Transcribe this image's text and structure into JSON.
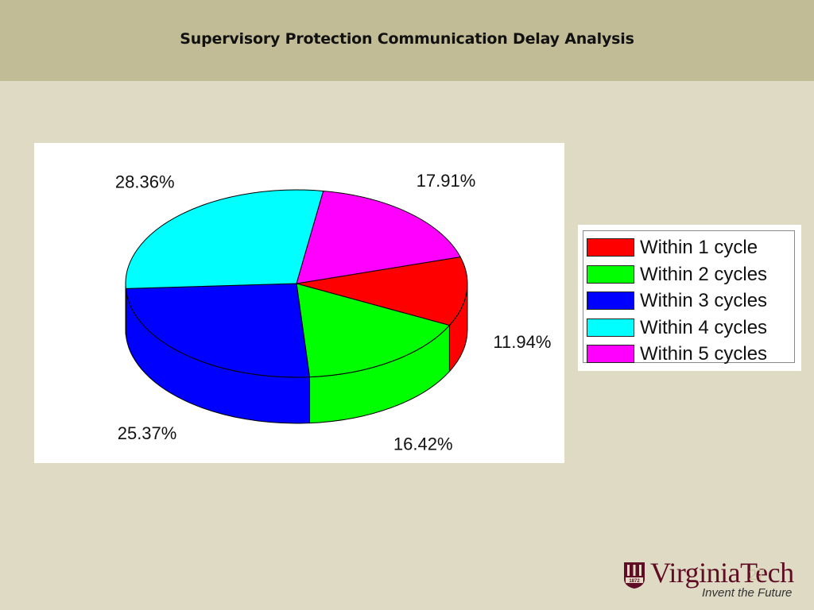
{
  "slide": {
    "title": "Supervisory Protection Communication Delay Analysis",
    "page_number": "27"
  },
  "logo": {
    "wordmark": "VirginiaTech",
    "tagline": "Invent the Future",
    "shield_text": "1872",
    "brand_color": "#5e0d24"
  },
  "chart_data": {
    "type": "pie",
    "style": "3d",
    "title": "",
    "categories": [
      "Within 1 cycle",
      "Within 2 cycles",
      "Within 3 cycles",
      "Within 4 cycles",
      "Within 5 cycles"
    ],
    "values": [
      11.94,
      16.42,
      25.37,
      28.36,
      17.91
    ],
    "labels": [
      "11.94%",
      "16.42%",
      "25.37%",
      "28.36%",
      "17.91%"
    ],
    "colors": [
      "#ff0000",
      "#00ff00",
      "#0000ff",
      "#00ffff",
      "#ff00ff"
    ],
    "legend": {
      "placement": "right"
    }
  }
}
